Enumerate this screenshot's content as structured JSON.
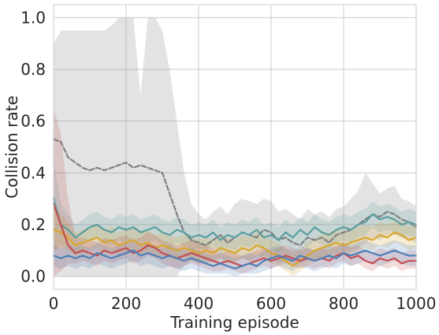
{
  "chart_data": {
    "type": "line",
    "title": "",
    "xlabel": "Training episode",
    "ylabel": "Collision rate",
    "xlim": [
      0,
      1000
    ],
    "ylim": [
      -0.05,
      1.05
    ],
    "xticks": [
      0,
      200,
      400,
      600,
      800,
      1000
    ],
    "yticks": [
      0.0,
      0.2,
      0.4,
      0.6,
      0.8,
      1.0
    ],
    "xtick_labels": [
      "0",
      "200",
      "400",
      "600",
      "800",
      "1000"
    ],
    "ytick_labels": [
      "0.0",
      "0.2",
      "0.4",
      "0.6",
      "0.8",
      "1.0"
    ],
    "grid": true,
    "legend": "none",
    "x": [
      0,
      20,
      40,
      60,
      80,
      100,
      120,
      140,
      160,
      180,
      200,
      220,
      240,
      260,
      280,
      300,
      320,
      340,
      360,
      380,
      400,
      420,
      440,
      460,
      480,
      500,
      520,
      540,
      560,
      580,
      600,
      620,
      640,
      660,
      680,
      700,
      720,
      740,
      760,
      780,
      800,
      820,
      840,
      860,
      880,
      900,
      920,
      940,
      960,
      980,
      1000
    ],
    "series": [
      {
        "color": "#808080",
        "dashed": true,
        "values": [
          0.53,
          0.52,
          0.46,
          0.44,
          0.42,
          0.41,
          0.42,
          0.41,
          0.42,
          0.43,
          0.44,
          0.42,
          0.43,
          0.42,
          0.41,
          0.4,
          0.32,
          0.24,
          0.17,
          0.14,
          0.13,
          0.12,
          0.14,
          0.16,
          0.13,
          0.15,
          0.17,
          0.16,
          0.15,
          0.18,
          0.17,
          0.14,
          0.15,
          0.13,
          0.12,
          0.15,
          0.14,
          0.15,
          0.13,
          0.16,
          0.17,
          0.18,
          0.2,
          0.22,
          0.24,
          0.23,
          0.25,
          0.24,
          0.22,
          0.21,
          0.19
        ],
        "lower": [
          0.0,
          0.0,
          0.0,
          0.0,
          0.0,
          0.0,
          0.0,
          0.0,
          0.0,
          0.0,
          0.0,
          0.0,
          0.0,
          0.0,
          0.0,
          0.0,
          0.0,
          0.0,
          0.04,
          0.06,
          0.05,
          0.05,
          0.06,
          0.07,
          0.05,
          0.06,
          0.07,
          0.06,
          0.06,
          0.08,
          0.07,
          0.05,
          0.06,
          0.05,
          0.05,
          0.06,
          0.06,
          0.07,
          0.06,
          0.08,
          0.09,
          0.1,
          0.11,
          0.13,
          0.15,
          0.14,
          0.16,
          0.16,
          0.15,
          0.14,
          0.13
        ],
        "upper": [
          0.9,
          0.95,
          0.95,
          0.95,
          0.95,
          0.95,
          0.95,
          0.95,
          0.97,
          1.0,
          1.0,
          1.0,
          0.7,
          1.0,
          1.0,
          0.95,
          0.8,
          0.6,
          0.4,
          0.28,
          0.24,
          0.22,
          0.25,
          0.27,
          0.24,
          0.28,
          0.3,
          0.29,
          0.28,
          0.3,
          0.29,
          0.25,
          0.26,
          0.24,
          0.22,
          0.26,
          0.24,
          0.25,
          0.23,
          0.26,
          0.27,
          0.3,
          0.33,
          0.4,
          0.36,
          0.32,
          0.34,
          0.35,
          0.3,
          0.29,
          0.27
        ]
      },
      {
        "color": "#5a9e9e",
        "dashed": false,
        "values": [
          0.3,
          0.2,
          0.18,
          0.15,
          0.17,
          0.19,
          0.2,
          0.18,
          0.17,
          0.19,
          0.18,
          0.19,
          0.17,
          0.18,
          0.19,
          0.17,
          0.16,
          0.18,
          0.17,
          0.15,
          0.16,
          0.15,
          0.17,
          0.14,
          0.16,
          0.15,
          0.17,
          0.16,
          0.18,
          0.15,
          0.16,
          0.14,
          0.17,
          0.15,
          0.18,
          0.16,
          0.19,
          0.17,
          0.16,
          0.18,
          0.19,
          0.18,
          0.2,
          0.21,
          0.24,
          0.22,
          0.23,
          0.22,
          0.2,
          0.21,
          0.2
        ],
        "lower": [
          0.1,
          0.12,
          0.12,
          0.1,
          0.12,
          0.14,
          0.15,
          0.13,
          0.12,
          0.14,
          0.13,
          0.14,
          0.12,
          0.13,
          0.14,
          0.12,
          0.11,
          0.13,
          0.12,
          0.1,
          0.11,
          0.1,
          0.12,
          0.09,
          0.11,
          0.1,
          0.12,
          0.11,
          0.13,
          0.1,
          0.11,
          0.09,
          0.12,
          0.1,
          0.13,
          0.11,
          0.14,
          0.12,
          0.11,
          0.13,
          0.14,
          0.13,
          0.15,
          0.16,
          0.19,
          0.17,
          0.18,
          0.17,
          0.15,
          0.16,
          0.15
        ],
        "upper": [
          0.45,
          0.28,
          0.24,
          0.2,
          0.22,
          0.24,
          0.25,
          0.23,
          0.22,
          0.24,
          0.23,
          0.24,
          0.22,
          0.23,
          0.24,
          0.22,
          0.21,
          0.23,
          0.22,
          0.2,
          0.21,
          0.2,
          0.22,
          0.19,
          0.21,
          0.2,
          0.22,
          0.21,
          0.23,
          0.2,
          0.21,
          0.19,
          0.22,
          0.2,
          0.23,
          0.21,
          0.24,
          0.22,
          0.21,
          0.23,
          0.24,
          0.23,
          0.25,
          0.26,
          0.29,
          0.27,
          0.28,
          0.27,
          0.25,
          0.26,
          0.25
        ]
      },
      {
        "color": "#d9a62a",
        "dashed": false,
        "values": [
          0.18,
          0.17,
          0.15,
          0.12,
          0.13,
          0.14,
          0.15,
          0.13,
          0.14,
          0.12,
          0.13,
          0.14,
          0.12,
          0.13,
          0.11,
          0.12,
          0.11,
          0.1,
          0.11,
          0.1,
          0.09,
          0.1,
          0.09,
          0.11,
          0.1,
          0.09,
          0.11,
          0.1,
          0.12,
          0.11,
          0.09,
          0.08,
          0.06,
          0.04,
          0.06,
          0.08,
          0.1,
          0.11,
          0.12,
          0.13,
          0.12,
          0.13,
          0.14,
          0.15,
          0.14,
          0.16,
          0.15,
          0.17,
          0.16,
          0.14,
          0.15
        ],
        "lower": [
          0.1,
          0.11,
          0.1,
          0.08,
          0.09,
          0.1,
          0.11,
          0.09,
          0.1,
          0.08,
          0.09,
          0.1,
          0.08,
          0.09,
          0.07,
          0.08,
          0.07,
          0.06,
          0.07,
          0.06,
          0.05,
          0.06,
          0.05,
          0.07,
          0.06,
          0.05,
          0.07,
          0.06,
          0.08,
          0.07,
          0.05,
          0.04,
          0.02,
          0.0,
          0.02,
          0.04,
          0.06,
          0.07,
          0.08,
          0.09,
          0.08,
          0.09,
          0.1,
          0.11,
          0.1,
          0.12,
          0.11,
          0.13,
          0.12,
          0.1,
          0.11
        ],
        "upper": [
          0.28,
          0.24,
          0.21,
          0.17,
          0.18,
          0.19,
          0.2,
          0.18,
          0.19,
          0.17,
          0.18,
          0.19,
          0.17,
          0.18,
          0.16,
          0.17,
          0.16,
          0.15,
          0.16,
          0.15,
          0.14,
          0.15,
          0.14,
          0.16,
          0.15,
          0.14,
          0.16,
          0.15,
          0.17,
          0.16,
          0.14,
          0.13,
          0.11,
          0.09,
          0.11,
          0.13,
          0.15,
          0.16,
          0.17,
          0.18,
          0.17,
          0.18,
          0.19,
          0.2,
          0.19,
          0.21,
          0.2,
          0.22,
          0.21,
          0.19,
          0.2
        ]
      },
      {
        "color": "#c44e52",
        "dashed": false,
        "values": [
          0.28,
          0.2,
          0.12,
          0.09,
          0.1,
          0.09,
          0.08,
          0.1,
          0.09,
          0.1,
          0.11,
          0.09,
          0.1,
          0.12,
          0.11,
          0.09,
          0.08,
          0.07,
          0.08,
          0.09,
          0.08,
          0.07,
          0.06,
          0.05,
          0.06,
          0.05,
          0.04,
          0.05,
          0.06,
          0.07,
          0.06,
          0.07,
          0.08,
          0.07,
          0.06,
          0.07,
          0.06,
          0.07,
          0.06,
          0.08,
          0.09,
          0.07,
          0.08,
          0.06,
          0.05,
          0.07,
          0.06,
          0.07,
          0.05,
          0.06,
          0.06
        ],
        "lower": [
          0.0,
          0.02,
          0.05,
          0.05,
          0.06,
          0.05,
          0.04,
          0.06,
          0.05,
          0.06,
          0.07,
          0.05,
          0.06,
          0.08,
          0.07,
          0.05,
          0.04,
          0.03,
          0.04,
          0.05,
          0.04,
          0.03,
          0.02,
          0.02,
          0.03,
          0.02,
          0.01,
          0.02,
          0.03,
          0.04,
          0.03,
          0.04,
          0.05,
          0.04,
          0.03,
          0.04,
          0.03,
          0.04,
          0.03,
          0.05,
          0.06,
          0.04,
          0.05,
          0.03,
          0.02,
          0.04,
          0.03,
          0.04,
          0.02,
          0.03,
          0.03
        ],
        "upper": [
          0.65,
          0.55,
          0.3,
          0.15,
          0.15,
          0.14,
          0.13,
          0.15,
          0.14,
          0.15,
          0.16,
          0.14,
          0.15,
          0.17,
          0.16,
          0.14,
          0.13,
          0.12,
          0.13,
          0.14,
          0.13,
          0.12,
          0.11,
          0.09,
          0.1,
          0.09,
          0.08,
          0.09,
          0.1,
          0.11,
          0.1,
          0.11,
          0.12,
          0.11,
          0.1,
          0.11,
          0.1,
          0.11,
          0.1,
          0.12,
          0.13,
          0.11,
          0.12,
          0.1,
          0.09,
          0.11,
          0.1,
          0.11,
          0.09,
          0.1,
          0.1
        ]
      },
      {
        "color": "#4c7fb8",
        "dashed": false,
        "values": [
          0.08,
          0.07,
          0.08,
          0.07,
          0.08,
          0.07,
          0.09,
          0.08,
          0.07,
          0.08,
          0.09,
          0.1,
          0.08,
          0.09,
          0.08,
          0.07,
          0.08,
          0.07,
          0.06,
          0.07,
          0.06,
          0.05,
          0.04,
          0.05,
          0.04,
          0.03,
          0.04,
          0.05,
          0.04,
          0.06,
          0.07,
          0.08,
          0.07,
          0.06,
          0.08,
          0.07,
          0.06,
          0.07,
          0.08,
          0.07,
          0.09,
          0.08,
          0.09,
          0.1,
          0.09,
          0.08,
          0.09,
          0.1,
          0.09,
          0.08,
          0.08
        ],
        "lower": [
          0.04,
          0.03,
          0.04,
          0.03,
          0.04,
          0.03,
          0.05,
          0.04,
          0.03,
          0.04,
          0.05,
          0.06,
          0.04,
          0.05,
          0.04,
          0.03,
          0.04,
          0.03,
          0.02,
          0.03,
          0.02,
          0.01,
          0.01,
          0.01,
          0.01,
          0.0,
          0.01,
          0.01,
          0.01,
          0.02,
          0.03,
          0.04,
          0.03,
          0.02,
          0.04,
          0.03,
          0.02,
          0.03,
          0.04,
          0.03,
          0.05,
          0.04,
          0.05,
          0.06,
          0.05,
          0.04,
          0.05,
          0.06,
          0.05,
          0.04,
          0.04
        ],
        "upper": [
          0.12,
          0.11,
          0.12,
          0.11,
          0.12,
          0.11,
          0.13,
          0.12,
          0.11,
          0.12,
          0.13,
          0.14,
          0.12,
          0.13,
          0.12,
          0.11,
          0.12,
          0.11,
          0.1,
          0.11,
          0.1,
          0.09,
          0.08,
          0.09,
          0.08,
          0.07,
          0.08,
          0.09,
          0.08,
          0.1,
          0.11,
          0.12,
          0.11,
          0.1,
          0.12,
          0.11,
          0.1,
          0.11,
          0.12,
          0.11,
          0.13,
          0.12,
          0.13,
          0.14,
          0.13,
          0.12,
          0.13,
          0.14,
          0.13,
          0.12,
          0.12
        ]
      }
    ]
  }
}
